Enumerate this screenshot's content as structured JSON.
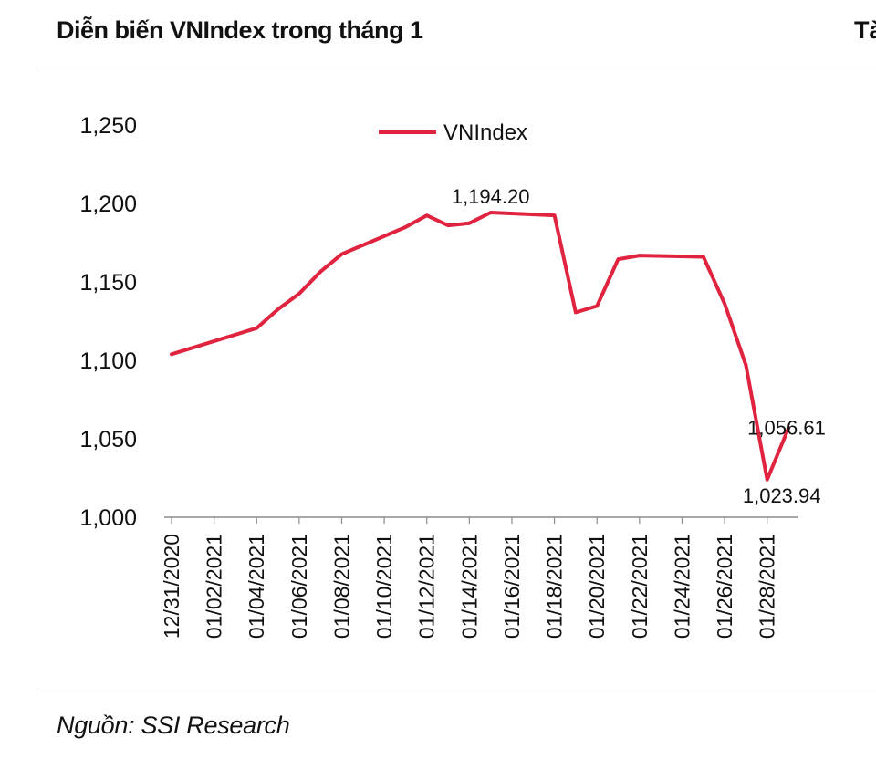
{
  "header": {
    "title": "Diễn biến VNIndex trong tháng 1",
    "right_title_fragment": "Tà"
  },
  "footer": {
    "source": "Nguồn: SSI Research"
  },
  "colors": {
    "series": "#e0243f",
    "axis": "#8c8c8c",
    "rule": "#b5b5b5"
  },
  "chart_data": {
    "type": "line",
    "title": "Diễn biến VNIndex trong tháng 1",
    "xlabel": "",
    "ylabel": "",
    "ylim": [
      1000,
      1250
    ],
    "y_ticks": [
      "1,000",
      "1,050",
      "1,100",
      "1,150",
      "1,200",
      "1,250"
    ],
    "x_tick_labels": [
      "12/31/2020",
      "01/02/2021",
      "01/04/2021",
      "01/06/2021",
      "01/08/2021",
      "01/10/2021",
      "01/12/2021",
      "01/14/2021",
      "01/16/2021",
      "01/18/2021",
      "01/20/2021",
      "01/22/2021",
      "01/24/2021",
      "01/26/2021",
      "01/28/2021"
    ],
    "x_range": [
      "12/31/2020",
      "01/29/2021"
    ],
    "grid": false,
    "legend": {
      "position": "top-center"
    },
    "series": [
      {
        "name": "VNIndex",
        "x": [
          "12/31/2020",
          "01/04/2021",
          "01/05/2021",
          "01/06/2021",
          "01/07/2021",
          "01/08/2021",
          "01/11/2021",
          "01/12/2021",
          "01/13/2021",
          "01/14/2021",
          "01/15/2021",
          "01/18/2021",
          "01/19/2021",
          "01/20/2021",
          "01/21/2021",
          "01/22/2021",
          "01/25/2021",
          "01/26/2021",
          "01/27/2021",
          "01/28/2021",
          "01/29/2021"
        ],
        "values": [
          1103.9,
          1120.5,
          1132.5,
          1142.5,
          1156.5,
          1167.7,
          1184.9,
          1192.3,
          1186.0,
          1187.3,
          1194.2,
          1192.4,
          1130.6,
          1134.6,
          1164.5,
          1166.8,
          1166.0,
          1136.1,
          1097.0,
          1023.94,
          1056.61
        ]
      }
    ],
    "annotations": [
      {
        "x": "01/15/2021",
        "y": 1194.2,
        "text": "1,194.20"
      },
      {
        "x": "01/29/2021",
        "y": 1056.61,
        "text": "1,056.61"
      },
      {
        "x": "01/28/2021",
        "y": 1023.94,
        "text": "1,023.94"
      }
    ]
  }
}
